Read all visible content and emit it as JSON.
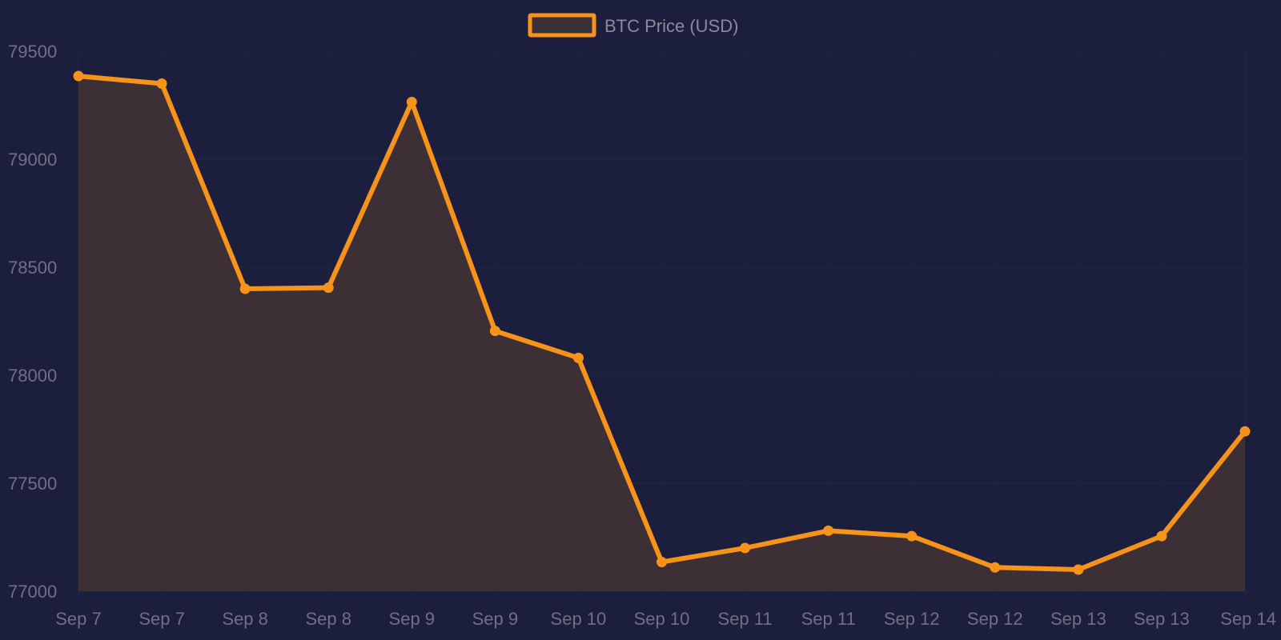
{
  "chart_data": {
    "type": "area",
    "categories": [
      "Sep 7",
      "Sep 7",
      "Sep 8",
      "Sep 8",
      "Sep 9",
      "Sep 9",
      "Sep 10",
      "Sep 10",
      "Sep 11",
      "Sep 11",
      "Sep 12",
      "Sep 12",
      "Sep 13",
      "Sep 13",
      "Sep 14"
    ],
    "series": [
      {
        "name": "BTC Price (USD)",
        "values": [
          79385,
          79350,
          78400,
          78405,
          79265,
          78205,
          78080,
          77135,
          77200,
          77280,
          77255,
          77110,
          77100,
          77255,
          77740
        ]
      }
    ],
    "y_ticks": [
      "79500",
      "79000",
      "78500",
      "78000",
      "77500",
      "77000"
    ],
    "ylim": [
      77000,
      79500
    ],
    "grid": true,
    "legend": "top-center",
    "colors": {
      "background": "#1b1e3c",
      "line": "#f7931a",
      "fill": "#3c2f36",
      "grid": "#232546",
      "text": "#6f7183"
    }
  }
}
